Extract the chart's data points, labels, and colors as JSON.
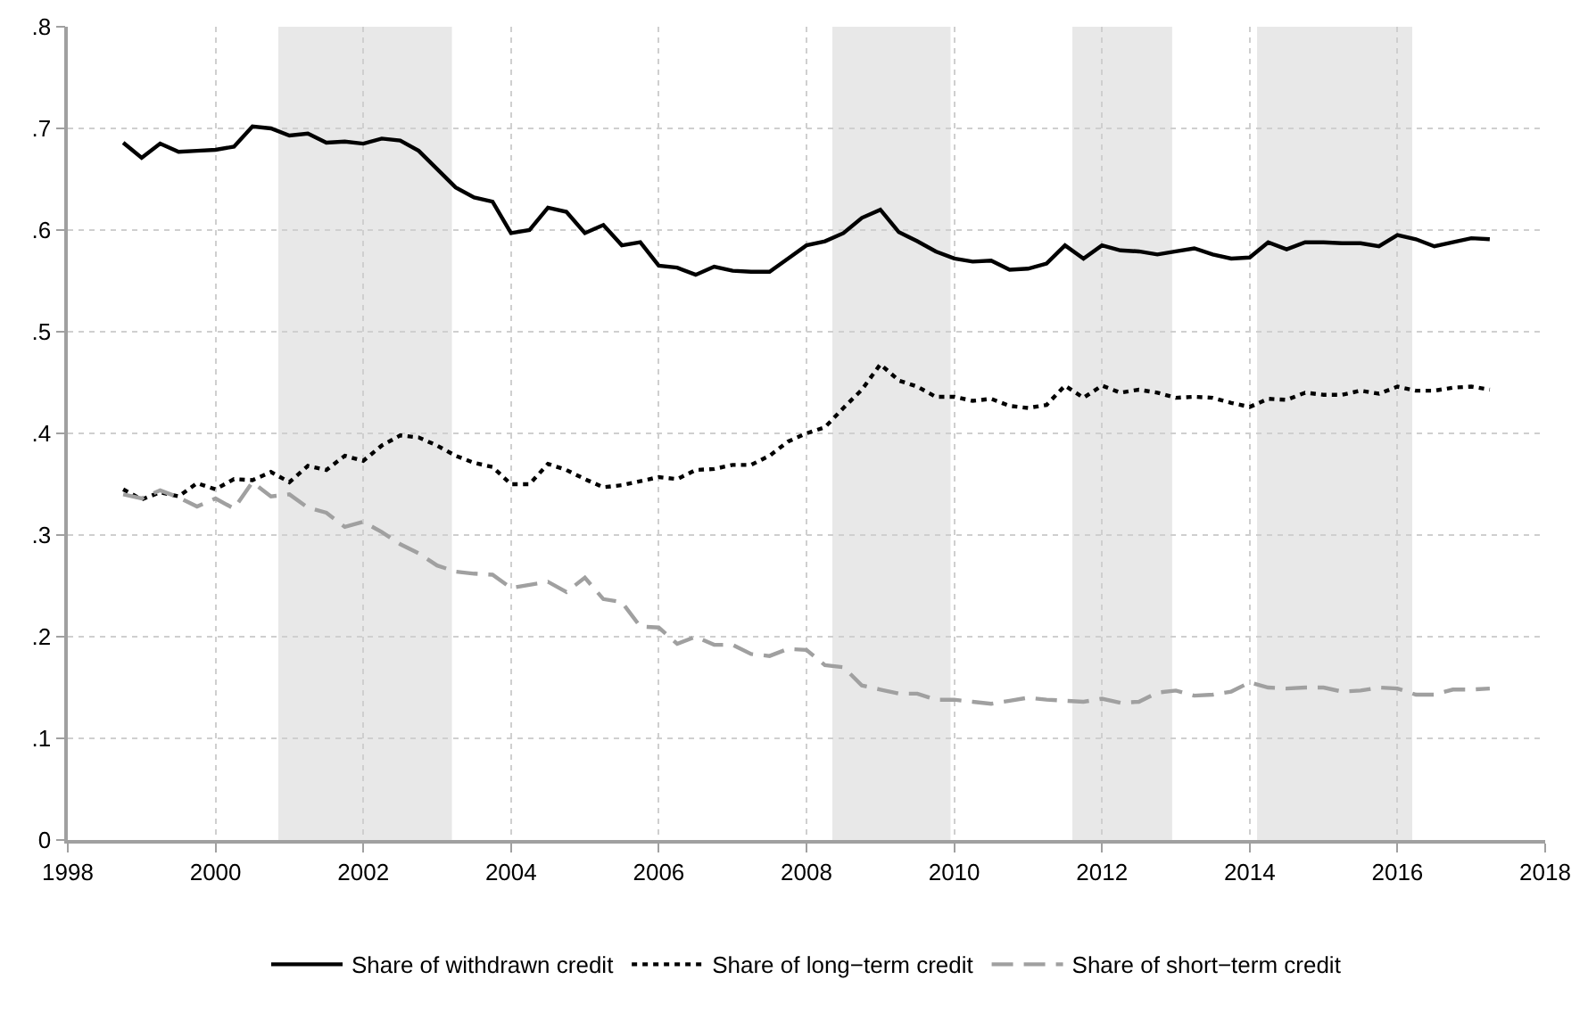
{
  "chart_data": {
    "type": "line",
    "x": [
      1998.75,
      1999,
      1999.25,
      1999.5,
      1999.75,
      2000,
      2000.25,
      2000.5,
      2000.75,
      2001,
      2001.25,
      2001.5,
      2001.75,
      2002,
      2002.25,
      2002.5,
      2002.75,
      2003,
      2003.25,
      2003.5,
      2003.75,
      2004,
      2004.25,
      2004.5,
      2004.75,
      2005,
      2005.25,
      2005.5,
      2005.75,
      2006,
      2006.25,
      2006.5,
      2006.75,
      2007,
      2007.25,
      2007.5,
      2007.75,
      2008,
      2008.25,
      2008.5,
      2008.75,
      2009,
      2009.25,
      2009.5,
      2009.75,
      2010,
      2010.25,
      2010.5,
      2010.75,
      2011,
      2011.25,
      2011.5,
      2011.75,
      2012,
      2012.25,
      2012.5,
      2012.75,
      2013,
      2013.25,
      2013.5,
      2013.75,
      2014,
      2014.25,
      2014.5,
      2014.75,
      2015,
      2015.25,
      2015.5,
      2015.75,
      2016,
      2016.25,
      2016.5,
      2016.75,
      2017,
      2017.25
    ],
    "series": [
      {
        "name": "Share of withdrawn credit",
        "color": "#000000",
        "line_style": "solid",
        "values": [
          0.686,
          0.671,
          0.685,
          0.677,
          0.678,
          0.679,
          0.682,
          0.702,
          0.7,
          0.693,
          0.695,
          0.686,
          0.687,
          0.685,
          0.69,
          0.688,
          0.678,
          0.66,
          0.642,
          0.632,
          0.628,
          0.597,
          0.6,
          0.622,
          0.618,
          0.597,
          0.605,
          0.585,
          0.588,
          0.565,
          0.563,
          0.556,
          0.564,
          0.56,
          0.559,
          0.559,
          0.572,
          0.585,
          0.589,
          0.597,
          0.612,
          0.62,
          0.598,
          0.589,
          0.579,
          0.572,
          0.569,
          0.57,
          0.561,
          0.562,
          0.567,
          0.585,
          0.572,
          0.585,
          0.58,
          0.579,
          0.576,
          0.579,
          0.582,
          0.576,
          0.572,
          0.573,
          0.588,
          0.581,
          0.588,
          0.588,
          0.587,
          0.587,
          0.584,
          0.595,
          0.591,
          0.584,
          0.588,
          0.592,
          0.591
        ]
      },
      {
        "name": "Share of long−term credit",
        "color": "#000000",
        "line_style": "dotted",
        "values": [
          0.345,
          0.335,
          0.342,
          0.338,
          0.351,
          0.345,
          0.355,
          0.354,
          0.362,
          0.352,
          0.368,
          0.364,
          0.378,
          0.373,
          0.388,
          0.398,
          0.396,
          0.388,
          0.378,
          0.371,
          0.367,
          0.35,
          0.35,
          0.37,
          0.364,
          0.355,
          0.347,
          0.349,
          0.353,
          0.357,
          0.355,
          0.364,
          0.365,
          0.369,
          0.369,
          0.378,
          0.392,
          0.4,
          0.406,
          0.425,
          0.443,
          0.468,
          0.452,
          0.446,
          0.436,
          0.436,
          0.432,
          0.434,
          0.427,
          0.425,
          0.428,
          0.447,
          0.435,
          0.447,
          0.44,
          0.443,
          0.44,
          0.435,
          0.436,
          0.435,
          0.43,
          0.426,
          0.434,
          0.433,
          0.44,
          0.438,
          0.438,
          0.442,
          0.439,
          0.446,
          0.442,
          0.442,
          0.445,
          0.446,
          0.443
        ]
      },
      {
        "name": "Share of short−term credit",
        "color": "#a0a0a0",
        "line_style": "dashed",
        "values": [
          0.34,
          0.336,
          0.344,
          0.337,
          0.328,
          0.336,
          0.326,
          0.352,
          0.338,
          0.34,
          0.327,
          0.322,
          0.308,
          0.313,
          0.303,
          0.291,
          0.282,
          0.27,
          0.264,
          0.262,
          0.261,
          0.248,
          0.251,
          0.254,
          0.244,
          0.258,
          0.237,
          0.234,
          0.21,
          0.209,
          0.193,
          0.2,
          0.192,
          0.192,
          0.183,
          0.181,
          0.188,
          0.187,
          0.172,
          0.17,
          0.152,
          0.148,
          0.144,
          0.144,
          0.138,
          0.138,
          0.136,
          0.134,
          0.137,
          0.14,
          0.138,
          0.137,
          0.136,
          0.139,
          0.135,
          0.136,
          0.145,
          0.147,
          0.142,
          0.143,
          0.146,
          0.155,
          0.15,
          0.149,
          0.15,
          0.15,
          0.146,
          0.147,
          0.15,
          0.149,
          0.143,
          0.143,
          0.148,
          0.148,
          0.149
        ]
      }
    ],
    "bands": [
      {
        "axis": "x",
        "from": 2000.85,
        "to": 2003.2,
        "color": "#e8e8e8"
      },
      {
        "axis": "x",
        "from": 2008.35,
        "to": 2009.95,
        "color": "#e8e8e8"
      },
      {
        "axis": "x",
        "from": 2011.6,
        "to": 2012.95,
        "color": "#e8e8e8"
      },
      {
        "axis": "x",
        "from": 2014.1,
        "to": 2016.2,
        "color": "#e8e8e8"
      }
    ],
    "xlim": [
      1998,
      2018
    ],
    "xticks": [
      1998,
      2000,
      2002,
      2004,
      2006,
      2008,
      2010,
      2012,
      2014,
      2016,
      2018
    ],
    "ylim": [
      0,
      0.8
    ],
    "yticks": [
      0,
      {
        "value": 0.1,
        "label": ".1"
      },
      {
        "value": 0.2,
        "label": ".2"
      },
      {
        "value": 0.3,
        "label": ".3"
      },
      {
        "value": 0.4,
        "label": ".4"
      },
      {
        "value": 0.5,
        "label": ".5"
      },
      {
        "value": 0.6,
        "label": ".6"
      },
      {
        "value": 0.7,
        "label": ".7"
      },
      {
        "value": 0.8,
        "label": ".8"
      }
    ],
    "grid": true,
    "legend": "bottom",
    "marker": "none"
  }
}
